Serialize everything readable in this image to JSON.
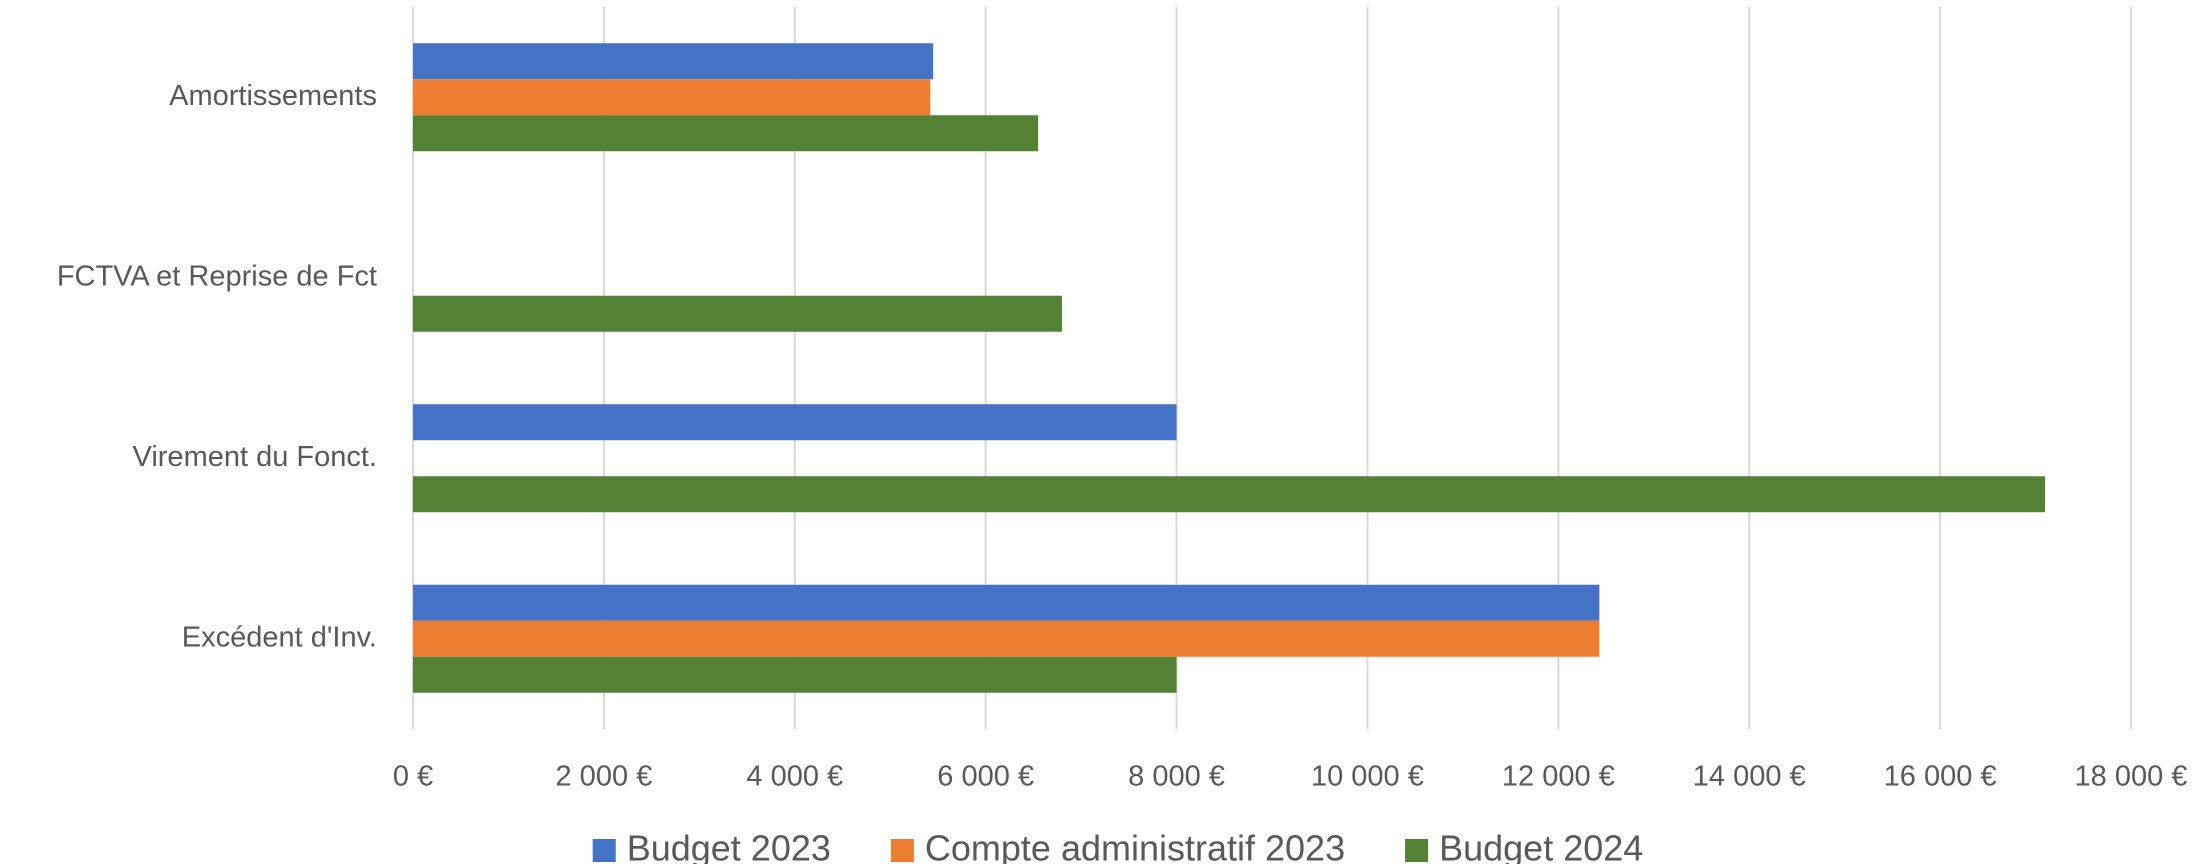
{
  "chart_data": {
    "type": "hbar",
    "categories": [
      "Amortissements",
      "FCTVA et Reprise de Fct",
      "Virement du Fonct.",
      "Excédent d'Inv."
    ],
    "series": [
      {
        "name": "Budget 2023",
        "color": "#4472c4",
        "values": [
          5450,
          null,
          8000,
          12430
        ]
      },
      {
        "name": "Compte administratif 2023",
        "color": "#ed7d31",
        "values": [
          5420,
          null,
          null,
          12430
        ]
      },
      {
        "name": "Budget 2024",
        "color": "#548235",
        "values": [
          6550,
          6800,
          17100,
          8000
        ]
      }
    ],
    "xlim": [
      0,
      18000
    ],
    "xticks": [
      {
        "value": 0,
        "label": "0 €"
      },
      {
        "value": 2000,
        "label": "2 000 €"
      },
      {
        "value": 4000,
        "label": "4 000 €"
      },
      {
        "value": 6000,
        "label": "6 000 €"
      },
      {
        "value": 8000,
        "label": "8 000 €"
      },
      {
        "value": 10000,
        "label": "10 000 €"
      },
      {
        "value": 12000,
        "label": "12 000 €"
      },
      {
        "value": 14000,
        "label": "14 000 €"
      },
      {
        "value": 16000,
        "label": "16 000 €"
      },
      {
        "value": 18000,
        "label": "18 000 €"
      }
    ],
    "grid": true,
    "legend": "bottom"
  }
}
